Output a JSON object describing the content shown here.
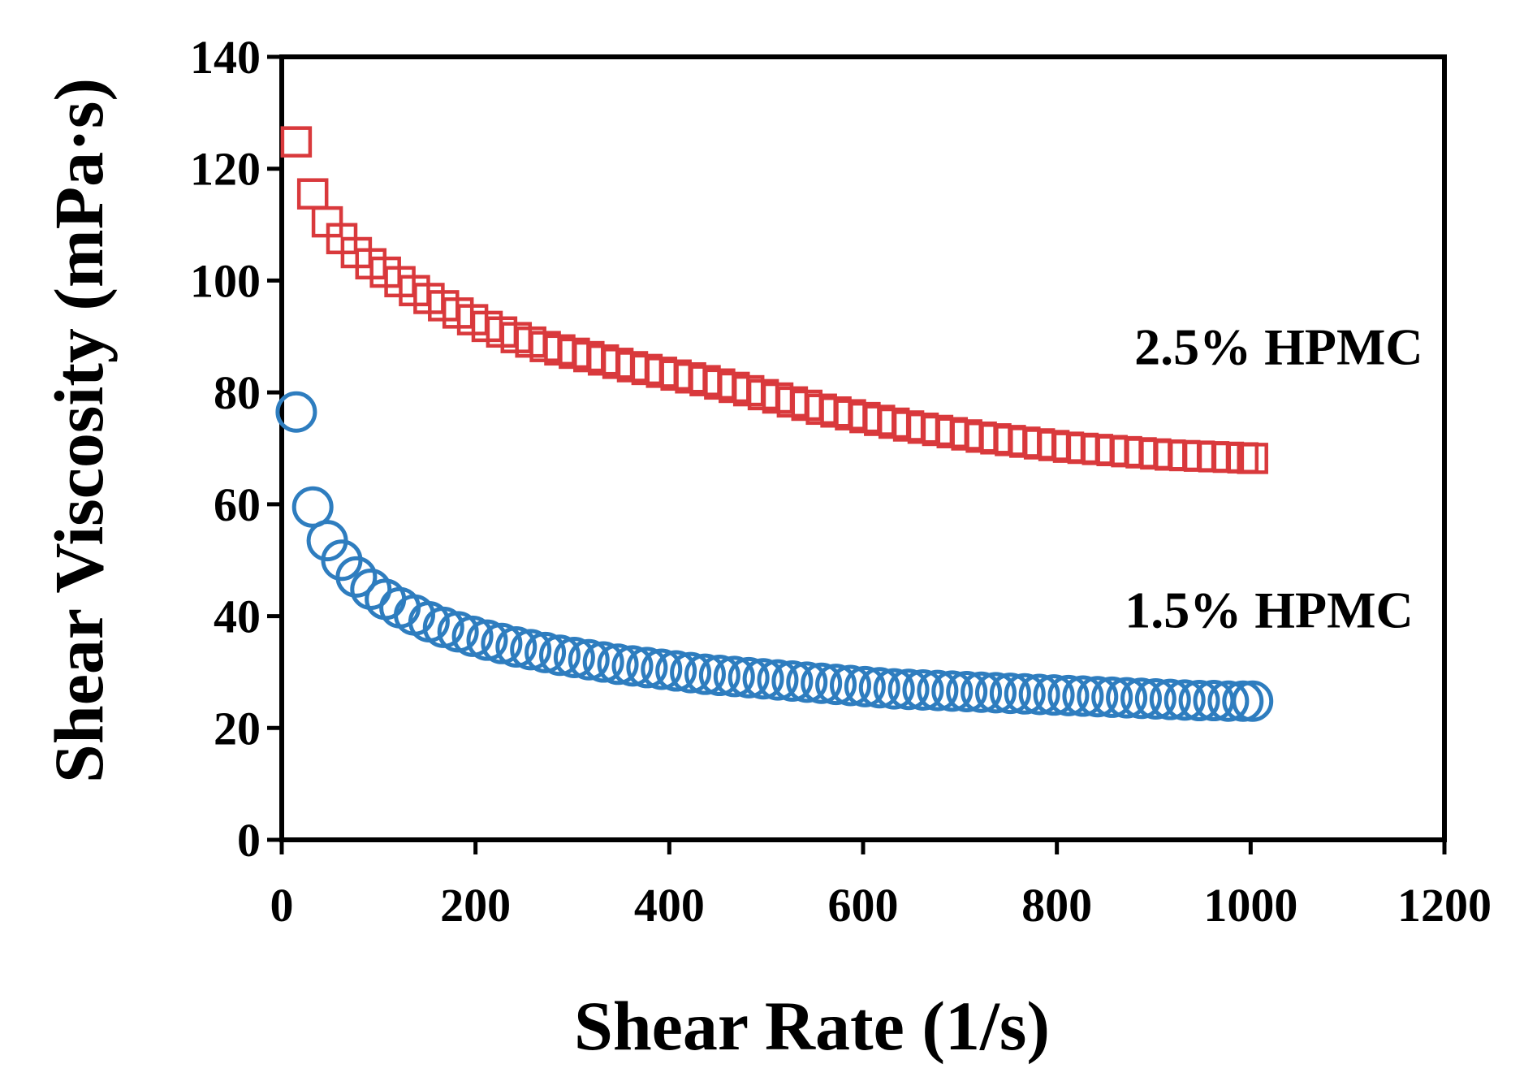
{
  "chart_data": {
    "type": "scatter",
    "title": "",
    "xlabel": "Shear Rate (1/s)",
    "ylabel": "Shear Viscosity (mPa·s)",
    "xlim": [
      0,
      1200
    ],
    "ylim": [
      0,
      140
    ],
    "x_ticks": [
      0,
      200,
      400,
      600,
      800,
      1000,
      1200
    ],
    "y_ticks": [
      0,
      20,
      40,
      60,
      80,
      100,
      120,
      140
    ],
    "x_tick_labels": [
      "0",
      "200",
      "400",
      "600",
      "800",
      "1000",
      "1200"
    ],
    "y_tick_labels": [
      "0",
      "20",
      "40",
      "60",
      "80",
      "100",
      "120",
      "140"
    ],
    "grid": false,
    "legend": "none",
    "series": [
      {
        "name": "2.5% HPMC",
        "marker": "square",
        "color": "#d9393c",
        "label_at": [
          880,
          85
        ],
        "x": [
          15,
          32,
          47,
          62,
          77,
          92,
          107,
          122,
          137,
          152,
          167,
          182,
          197,
          212,
          227,
          242,
          257,
          272,
          287,
          302,
          317,
          332,
          347,
          362,
          377,
          392,
          407,
          422,
          437,
          452,
          467,
          482,
          497,
          512,
          527,
          542,
          557,
          572,
          587,
          602,
          617,
          632,
          647,
          662,
          677,
          692,
          707,
          722,
          737,
          752,
          767,
          782,
          797,
          812,
          827,
          842,
          857,
          872,
          887,
          902,
          917,
          932,
          947,
          962,
          977,
          992,
          1002
        ],
        "y": [
          124.8,
          115.5,
          110.5,
          107.5,
          105.0,
          103.0,
          101.5,
          99.8,
          98.2,
          96.8,
          95.5,
          94.2,
          93.0,
          91.8,
          90.8,
          89.8,
          89.0,
          88.2,
          87.6,
          87.0,
          86.4,
          85.8,
          85.2,
          84.6,
          84.1,
          83.6,
          83.1,
          82.6,
          82.1,
          81.5,
          80.9,
          80.3,
          79.6,
          79.0,
          78.3,
          77.7,
          77.0,
          76.5,
          76.0,
          75.5,
          75.0,
          74.5,
          74.0,
          73.6,
          73.2,
          72.8,
          72.4,
          72.0,
          71.7,
          71.4,
          71.1,
          70.8,
          70.5,
          70.2,
          70.0,
          69.8,
          69.6,
          69.4,
          69.2,
          69.0,
          68.8,
          68.7,
          68.6,
          68.5,
          68.4,
          68.3,
          68.2
        ]
      },
      {
        "name": "1.5% HPMC",
        "marker": "circle",
        "color": "#2e7dbf",
        "label_at": [
          870,
          38
        ],
        "x": [
          15,
          32,
          47,
          62,
          77,
          92,
          107,
          122,
          137,
          152,
          167,
          182,
          197,
          212,
          227,
          242,
          257,
          272,
          287,
          302,
          317,
          332,
          347,
          362,
          377,
          392,
          407,
          422,
          437,
          452,
          467,
          482,
          497,
          512,
          527,
          542,
          557,
          572,
          587,
          602,
          617,
          632,
          647,
          662,
          677,
          692,
          707,
          722,
          737,
          752,
          767,
          782,
          797,
          812,
          827,
          842,
          857,
          872,
          887,
          902,
          917,
          932,
          947,
          962,
          977,
          992,
          1002
        ],
        "y": [
          76.5,
          59.5,
          53.5,
          50.0,
          47.0,
          44.8,
          43.0,
          41.5,
          40.2,
          39.0,
          38.0,
          37.2,
          36.4,
          35.7,
          35.1,
          34.5,
          34.0,
          33.5,
          33.0,
          32.6,
          32.2,
          31.8,
          31.4,
          31.1,
          30.8,
          30.5,
          30.2,
          29.9,
          29.6,
          29.4,
          29.2,
          29.0,
          28.8,
          28.6,
          28.4,
          28.2,
          28.0,
          27.8,
          27.6,
          27.4,
          27.2,
          27.0,
          26.9,
          26.8,
          26.7,
          26.6,
          26.5,
          26.4,
          26.3,
          26.2,
          26.1,
          26.0,
          25.9,
          25.8,
          25.7,
          25.6,
          25.5,
          25.4,
          25.3,
          25.2,
          25.1,
          25.0,
          24.9,
          24.9,
          24.8,
          24.8,
          24.8
        ]
      }
    ]
  }
}
